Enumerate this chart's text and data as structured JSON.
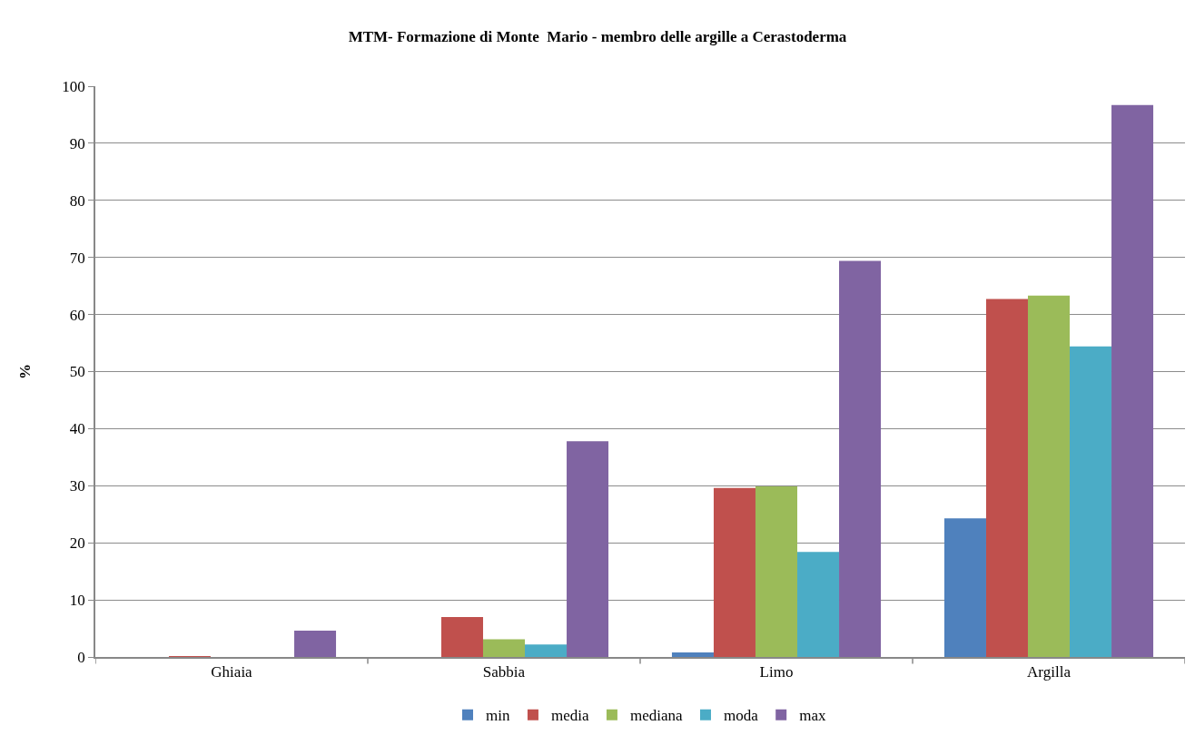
{
  "chart_data": {
    "type": "bar",
    "title": "MTM- Formazione di Monte  Mario - membro delle argille a Cerastoderma",
    "ylabel": "%",
    "categories": [
      "Ghiaia",
      "Sabbia",
      "Limo",
      "Argilla"
    ],
    "series": [
      {
        "name": "min",
        "color": "#4f81bd",
        "values": [
          0,
          0,
          0.8,
          24.3
        ]
      },
      {
        "name": "media",
        "color": "#c0504d",
        "values": [
          0.1,
          7.0,
          29.6,
          62.7
        ]
      },
      {
        "name": "mediana",
        "color": "#9bbb59",
        "values": [
          0,
          3.1,
          29.9,
          63.3
        ]
      },
      {
        "name": "moda",
        "color": "#4bacc6",
        "values": [
          0,
          2.2,
          18.4,
          54.4
        ]
      },
      {
        "name": "max",
        "color": "#8064a2",
        "values": [
          4.6,
          37.8,
          69.4,
          96.7
        ]
      }
    ],
    "ylim": [
      0,
      100
    ],
    "yticks": [
      0,
      10,
      20,
      30,
      40,
      50,
      60,
      70,
      80,
      90,
      100
    ],
    "grid": "y",
    "legend": "bottom"
  }
}
